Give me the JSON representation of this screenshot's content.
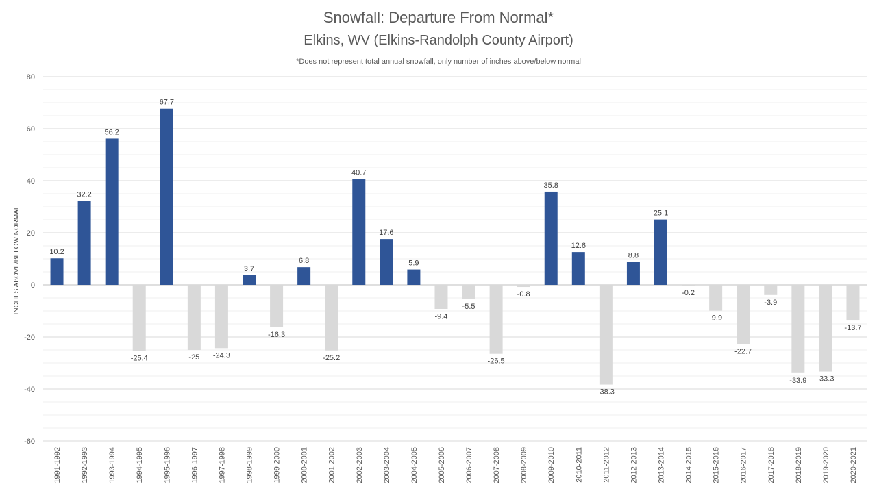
{
  "chart_data": {
    "type": "bar",
    "title": "Snowfall: Departure From Normal*",
    "subtitle": "Elkins, WV (Elkins-Randolph County Airport)",
    "note": "*Does not represent total annual snowfall, only number of inches above/below normal",
    "ylabel": "INCHES ABOVE/BELOW NORMAL",
    "xlabel": "",
    "ylim": [
      -60,
      80
    ],
    "yticks": [
      80,
      60,
      40,
      20,
      0,
      -20,
      -40,
      -60
    ],
    "grid": true,
    "legend": "none",
    "colors": {
      "positive": "#2f5597",
      "negative": "#d9d9d9"
    },
    "categories": [
      "1991-1992",
      "1992-1993",
      "1993-1994",
      "1994-1995",
      "1995-1996",
      "1996-1997",
      "1997-1998",
      "1998-1999",
      "1999-2000",
      "2000-2001",
      "2001-2002",
      "2002-2003",
      "2003-2004",
      "2004-2005",
      "2005-2006",
      "2006-2007",
      "2007-2008",
      "2008-2009",
      "2009-2010",
      "2010-2011",
      "2011-2012",
      "2012-2013",
      "2013-2014",
      "2014-2015",
      "2015-2016",
      "2016-2017",
      "2017-2018",
      "2018-2019",
      "2019-2020",
      "2020-2021"
    ],
    "values": [
      10.2,
      32.2,
      56.2,
      -25.4,
      67.7,
      -25,
      -24.3,
      3.7,
      -16.3,
      6.8,
      -25.2,
      40.7,
      17.6,
      5.9,
      -9.4,
      -5.5,
      -26.5,
      -0.8,
      35.8,
      12.6,
      -38.3,
      8.8,
      25.1,
      -0.2,
      -9.9,
      -22.7,
      -3.9,
      -33.9,
      -33.3,
      -13.7
    ]
  }
}
